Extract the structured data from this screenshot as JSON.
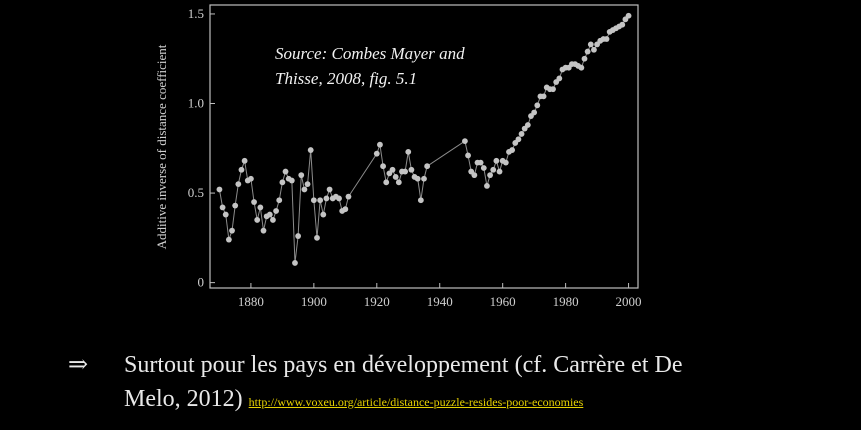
{
  "chart_data": {
    "type": "line",
    "title": "",
    "xlabel": "",
    "ylabel": "Additive inverse of distance coefficient",
    "xlim": [
      1867,
      2003
    ],
    "ylim": [
      -0.03,
      1.55
    ],
    "x_ticks": [
      1880,
      1900,
      1920,
      1940,
      1960,
      1980,
      2000
    ],
    "y_ticks": [
      0,
      0.5,
      1.0,
      1.5
    ],
    "y_tick_labels": [
      "0",
      "0.5",
      "1.0",
      "1.5"
    ],
    "annotation": [
      "Source: Combes Mayer and",
      "Thisse, 2008, fig. 5.1"
    ],
    "colors": {
      "line": "#8c8c8c",
      "marker": "#c4c4c4",
      "frame": "#bfbfbf"
    },
    "series": [
      {
        "x": [
          1870,
          1871,
          1872,
          1873,
          1874,
          1875,
          1876,
          1877,
          1878,
          1879,
          1880,
          1881,
          1882,
          1883,
          1884,
          1885,
          1886,
          1887,
          1888,
          1889,
          1890,
          1891,
          1892,
          1893,
          1894,
          1895,
          1896,
          1897,
          1898,
          1899,
          1900,
          1901,
          1902,
          1903,
          1904,
          1905,
          1906,
          1907,
          1908,
          1909,
          1910,
          1911,
          1920,
          1921,
          1922,
          1923,
          1924,
          1925,
          1926,
          1927,
          1928,
          1929,
          1930,
          1931,
          1932,
          1933,
          1934,
          1935,
          1936,
          1948,
          1949,
          1950,
          1951,
          1952,
          1953,
          1954,
          1955,
          1956,
          1957,
          1958,
          1959,
          1960,
          1961,
          1962,
          1963,
          1964,
          1965,
          1966,
          1967,
          1968,
          1969,
          1970,
          1971,
          1972,
          1973,
          1974,
          1975,
          1976,
          1977,
          1978,
          1979,
          1980,
          1981,
          1982,
          1983,
          1984,
          1985,
          1986,
          1987,
          1988,
          1989,
          1990,
          1991,
          1992,
          1993,
          1994,
          1995,
          1996,
          1997,
          1998,
          1999,
          2000
        ],
        "y": [
          0.52,
          0.42,
          0.38,
          0.24,
          0.29,
          0.43,
          0.55,
          0.63,
          0.68,
          0.57,
          0.58,
          0.45,
          0.35,
          0.42,
          0.29,
          0.37,
          0.38,
          0.35,
          0.4,
          0.46,
          0.56,
          0.62,
          0.58,
          0.57,
          0.11,
          0.26,
          0.6,
          0.52,
          0.55,
          0.74,
          0.46,
          0.25,
          0.46,
          0.38,
          0.47,
          0.52,
          0.47,
          0.48,
          0.47,
          0.4,
          0.41,
          0.48,
          0.72,
          0.77,
          0.65,
          0.56,
          0.61,
          0.63,
          0.59,
          0.56,
          0.62,
          0.62,
          0.73,
          0.63,
          0.59,
          0.58,
          0.46,
          0.58,
          0.65,
          0.79,
          0.71,
          0.62,
          0.6,
          0.67,
          0.67,
          0.64,
          0.54,
          0.6,
          0.63,
          0.68,
          0.62,
          0.68,
          0.67,
          0.73,
          0.74,
          0.78,
          0.8,
          0.83,
          0.86,
          0.88,
          0.93,
          0.95,
          0.99,
          1.04,
          1.04,
          1.09,
          1.08,
          1.08,
          1.12,
          1.14,
          1.19,
          1.2,
          1.2,
          1.22,
          1.22,
          1.21,
          1.2,
          1.25,
          1.29,
          1.33,
          1.3,
          1.33,
          1.35,
          1.36,
          1.36,
          1.4,
          1.41,
          1.42,
          1.43,
          1.44,
          1.47,
          1.49
        ]
      }
    ]
  },
  "bottom_text": {
    "arrow": "⇒",
    "line1": "Surtout pour les pays en développement (cf. Carrère et De",
    "line2": "Melo, 2012)",
    "link": "http://www.voxeu.org/article/distance-puzzle-resides-poor-economies"
  }
}
